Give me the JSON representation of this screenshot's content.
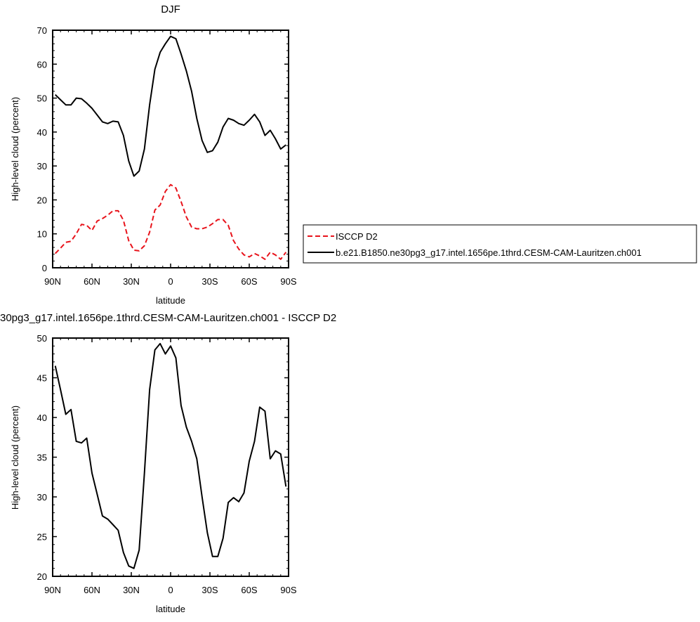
{
  "chart_data": [
    {
      "type": "line",
      "title": "DJF",
      "xlabel": "latitude",
      "ylabel": "High-level cloud (percent)",
      "xlim": [
        90,
        -90
      ],
      "ylim": [
        0,
        70
      ],
      "xticks": [
        90,
        60,
        30,
        0,
        -30,
        -60,
        -90
      ],
      "xticklabels": [
        "90N",
        "60N",
        "30N",
        "0",
        "30S",
        "60S",
        "90S"
      ],
      "yticks": [
        0,
        10,
        20,
        30,
        40,
        50,
        60,
        70
      ],
      "yticklabels": [
        "0",
        "10",
        "20",
        "30",
        "40",
        "50",
        "60",
        "70"
      ],
      "legend_position": "right",
      "series": [
        {
          "name": "ISCCP D2",
          "color": "#e8131b",
          "dashed": true,
          "x": [
            88,
            84,
            80,
            76,
            72,
            68,
            64,
            60,
            56,
            52,
            48,
            44,
            40,
            36,
            32,
            28,
            24,
            20,
            16,
            12,
            8,
            4,
            0,
            -4,
            -8,
            -12,
            -16,
            -20,
            -24,
            -28,
            -32,
            -36,
            -40,
            -44,
            -48,
            -52,
            -56,
            -60,
            -64,
            -68,
            -72,
            -76,
            -80,
            -84,
            -88
          ],
          "y": [
            4.2,
            5.8,
            7.5,
            7.8,
            10.0,
            12.8,
            12.5,
            11.0,
            13.8,
            14.5,
            15.5,
            16.8,
            16.8,
            14.0,
            8.0,
            5.2,
            5.0,
            6.5,
            10.5,
            17.0,
            18.5,
            22.5,
            24.5,
            23.5,
            19.5,
            15.0,
            12.0,
            11.5,
            11.5,
            12.0,
            13.0,
            14.2,
            14.2,
            12.5,
            8.0,
            5.5,
            3.8,
            3.2,
            4.2,
            3.5,
            2.5,
            4.6,
            3.8,
            2.5,
            4.6
          ]
        },
        {
          "name": "b.e21.B1850.ne30pg3_g17.intel.1656pe.1thrd.CESM-CAM-Lauritzen.ch001",
          "color": "#000000",
          "dashed": false,
          "x": [
            88,
            84,
            80,
            76,
            72,
            68,
            64,
            60,
            56,
            52,
            48,
            44,
            40,
            36,
            32,
            28,
            24,
            20,
            16,
            12,
            8,
            4,
            0,
            -4,
            -8,
            -12,
            -16,
            -20,
            -24,
            -28,
            -32,
            -36,
            -40,
            -44,
            -48,
            -52,
            -56,
            -60,
            -64,
            -68,
            -72,
            -76,
            -80,
            -84,
            -88
          ],
          "y": [
            51.0,
            49.5,
            48.0,
            48.0,
            50.0,
            49.8,
            48.5,
            47.0,
            45.0,
            43.0,
            42.5,
            43.2,
            43.0,
            39.0,
            31.5,
            27.0,
            28.5,
            35.0,
            48.0,
            58.5,
            63.5,
            66.0,
            68.2,
            67.5,
            63.0,
            58.0,
            52.0,
            44.0,
            37.5,
            34.0,
            34.5,
            37.0,
            41.5,
            44.0,
            43.5,
            42.5,
            42.0,
            43.5,
            45.2,
            43.0,
            39.0,
            40.5,
            38.0,
            35.0,
            36.2
          ]
        }
      ]
    },
    {
      "type": "line",
      "title": "30pg3_g17.intel.1656pe.1thrd.CESM-CAM-Lauritzen.ch001 - ISCCP D2",
      "xlabel": "latitude",
      "ylabel": "High-level cloud (percent)",
      "xlim": [
        90,
        -90
      ],
      "ylim": [
        20,
        50
      ],
      "xticks": [
        90,
        60,
        30,
        0,
        -30,
        -60,
        -90
      ],
      "xticklabels": [
        "90N",
        "60N",
        "30N",
        "0",
        "30S",
        "60S",
        "90S"
      ],
      "yticks": [
        20,
        25,
        30,
        35,
        40,
        45,
        50
      ],
      "yticklabels": [
        "20",
        "25",
        "30",
        "35",
        "40",
        "45",
        "50"
      ],
      "series": [
        {
          "name": "",
          "color": "#000000",
          "dashed": false,
          "x": [
            88,
            84,
            80,
            76,
            72,
            68,
            64,
            60,
            56,
            52,
            48,
            44,
            40,
            36,
            32,
            28,
            24,
            20,
            16,
            12,
            8,
            4,
            0,
            -4,
            -8,
            -12,
            -16,
            -20,
            -24,
            -28,
            -32,
            -36,
            -40,
            -44,
            -48,
            -52,
            -56,
            -60,
            -64,
            -68,
            -72,
            -76,
            -80,
            -84,
            -88
          ],
          "y": [
            46.5,
            43.5,
            40.4,
            41.0,
            37.0,
            36.8,
            37.4,
            33.0,
            30.3,
            27.6,
            27.2,
            26.5,
            25.8,
            23.0,
            21.3,
            21.0,
            23.3,
            33.0,
            43.5,
            48.5,
            49.3,
            48.0,
            49.0,
            47.5,
            41.5,
            38.8,
            37.0,
            34.8,
            30.0,
            25.5,
            22.5,
            22.5,
            24.8,
            29.3,
            29.9,
            29.4,
            30.5,
            34.5,
            37.0,
            41.3,
            40.8,
            34.8,
            35.8,
            35.4,
            31.3
          ]
        }
      ]
    }
  ]
}
